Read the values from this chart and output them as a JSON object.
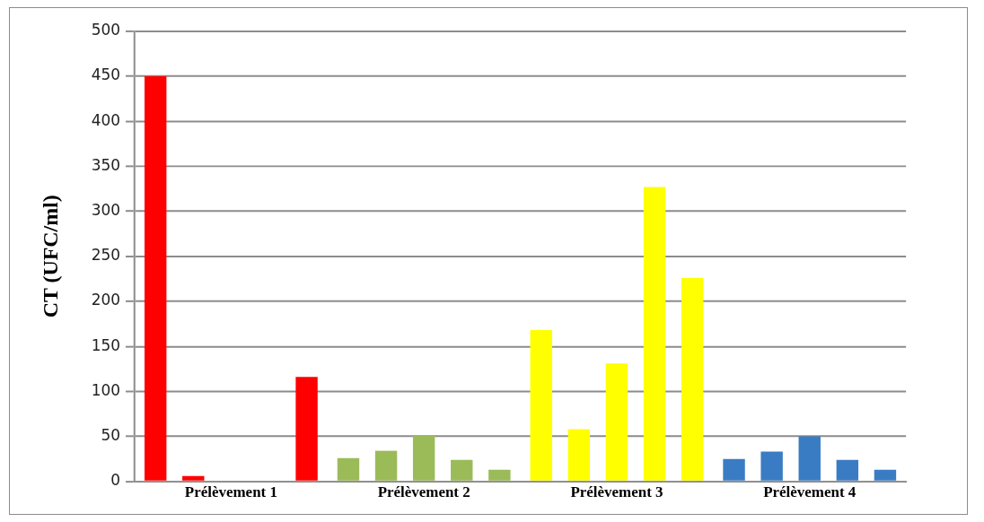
{
  "chart_data": {
    "type": "bar",
    "ylabel": "CT (UFC/ml)",
    "categories": [
      "Prélèvement 1",
      "Prélèvement 2",
      "Prélèvement 3",
      "Prélèvement 4"
    ],
    "series": [
      {
        "colors": [
          "#ff0000",
          "#9bbb59",
          "#ffff00",
          "#3a7cc4"
        ],
        "values": [
          450,
          26,
          168,
          25
        ]
      },
      {
        "colors": [
          "#ff0000",
          "#9bbb59",
          "#ffff00",
          "#3a7cc4"
        ],
        "values": [
          6,
          34,
          58,
          33
        ]
      },
      {
        "colors": [
          "#ff0000",
          "#9bbb59",
          "#ffff00",
          "#3a7cc4"
        ],
        "values": [
          0,
          51,
          131,
          50
        ]
      },
      {
        "colors": [
          "#ff0000",
          "#9bbb59",
          "#ffff00",
          "#3a7cc4"
        ],
        "values": [
          0,
          24,
          327,
          24
        ]
      },
      {
        "colors": [
          "#ff0000",
          "#9bbb59",
          "#ffff00",
          "#3a7cc4"
        ],
        "values": [
          116,
          13,
          226,
          13
        ]
      }
    ],
    "ylim": [
      0,
      500
    ],
    "yticks": [
      0,
      50,
      100,
      150,
      200,
      250,
      300,
      350,
      400,
      450,
      500
    ],
    "grid": "y",
    "legend": false
  }
}
